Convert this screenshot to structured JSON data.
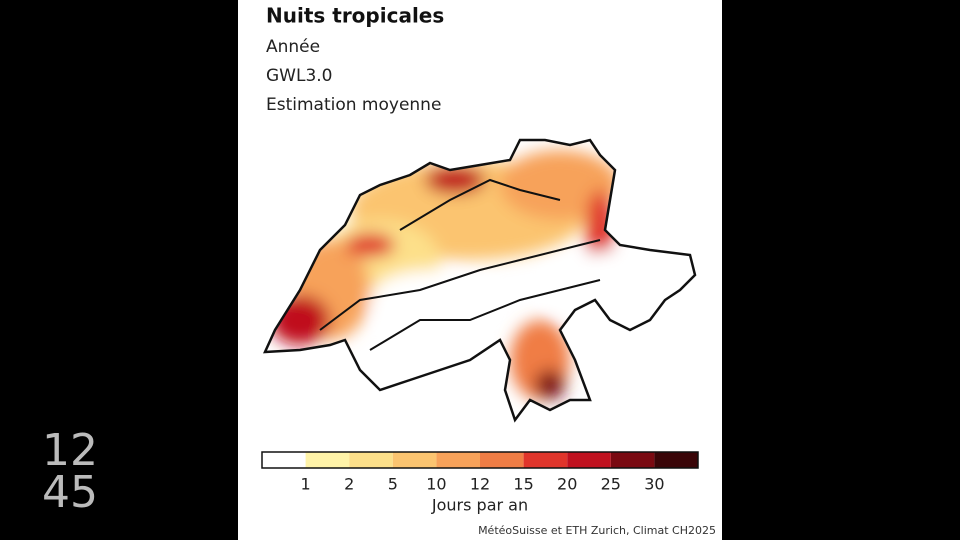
{
  "header": {
    "title": "Nuits tropicales",
    "lines": [
      "Année",
      "GWL3.0",
      "Estimation moyenne"
    ]
  },
  "legend": {
    "colors": [
      "#ffffff",
      "#fff3a8",
      "#fde08a",
      "#fbc470",
      "#f7a25a",
      "#f07d45",
      "#e0352b",
      "#c0111f",
      "#7a0a12",
      "#3a0508"
    ],
    "ticks": [
      "1",
      "2",
      "5",
      "10",
      "12",
      "15",
      "20",
      "25",
      "30"
    ],
    "title": "Jours par an"
  },
  "source": "MétéoSuisse et ETH Zurich, Climat CH2025",
  "logo": [
    "12",
    "45"
  ]
}
